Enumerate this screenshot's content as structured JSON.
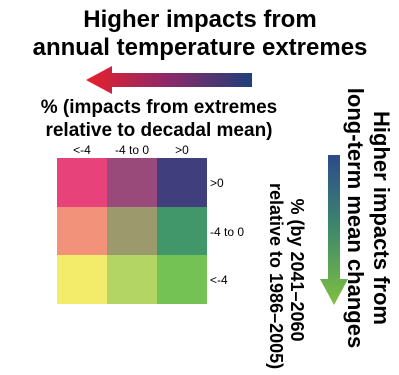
{
  "title": "Higher impacts from annual temperature extremes",
  "title_line1": "Higher impacts from",
  "title_line2": "annual temperature extremes",
  "y_axis": {
    "line1": "% (impacts from extremes",
    "line2": "relative to decadal mean)"
  },
  "columns": [
    "<-4",
    "-4 to 0",
    ">0"
  ],
  "rows": [
    ">0",
    "-4 to 0",
    "<-4"
  ],
  "x_axis": {
    "line1": "% (by 2041–2060",
    "line2": "relative to 1986–2005)"
  },
  "right_title": {
    "line1": "Higher impacts from",
    "line2": "long-term mean changes"
  },
  "colors": {
    "left_arrow_start": "#e8202a",
    "left_arrow_end": "#1f3f7a",
    "down_arrow_start": "#2c4a8c",
    "down_arrow_end": "#80c040",
    "grid": [
      [
        "#e8427a",
        "#9a4a7a",
        "#413e7e"
      ],
      [
        "#f3927a",
        "#9c9a6c",
        "#41966a"
      ],
      [
        "#f3ec6a",
        "#b2d564",
        "#74c154"
      ]
    ]
  }
}
